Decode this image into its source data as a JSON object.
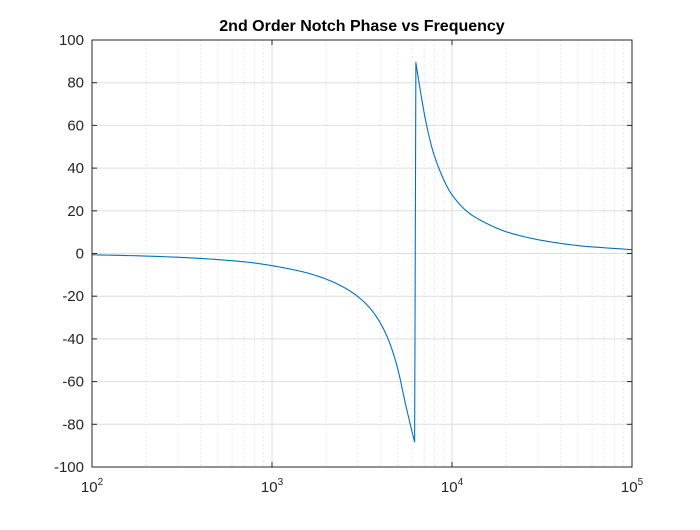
{
  "chart_data": {
    "type": "line",
    "title": "2nd Order Notch Phase vs Frequency",
    "xlabel": "",
    "ylabel": "",
    "x_scale": "log",
    "xlim": [
      100,
      100000
    ],
    "ylim": [
      -100,
      100
    ],
    "grid": true,
    "minor_grid_x": true,
    "line_color": "#0072BD",
    "x_ticks": [
      {
        "value": 100,
        "base": "10",
        "exp": "2"
      },
      {
        "value": 1000,
        "base": "10",
        "exp": "3"
      },
      {
        "value": 10000,
        "base": "10",
        "exp": "4"
      },
      {
        "value": 100000,
        "base": "10",
        "exp": "5"
      }
    ],
    "y_ticks": [
      {
        "value": 100,
        "label": "100"
      },
      {
        "value": 80,
        "label": "80"
      },
      {
        "value": 60,
        "label": "60"
      },
      {
        "value": 40,
        "label": "40"
      },
      {
        "value": 20,
        "label": "20"
      },
      {
        "value": 0,
        "label": "0"
      },
      {
        "value": -20,
        "label": "-20"
      },
      {
        "value": -40,
        "label": "-40"
      },
      {
        "value": -60,
        "label": "-60"
      },
      {
        "value": -80,
        "label": "-80"
      },
      {
        "value": -100,
        "label": "-100"
      }
    ],
    "series": [
      {
        "values": [
          [
            100,
            -0.6
          ],
          [
            200,
            -1.2
          ],
          [
            400,
            -2.3
          ],
          [
            700,
            -3.9
          ],
          [
            1000,
            -5.7
          ],
          [
            1500,
            -8.7
          ],
          [
            2000,
            -12.0
          ],
          [
            2500,
            -15.8
          ],
          [
            3000,
            -20.2
          ],
          [
            3500,
            -25.6
          ],
          [
            4000,
            -32.6
          ],
          [
            4500,
            -41.8
          ],
          [
            5000,
            -54.2
          ],
          [
            5500,
            -70.0
          ],
          [
            6000,
            -83.5
          ],
          [
            6200,
            -88.2
          ],
          [
            6300,
            89.5
          ],
          [
            6500,
            82.0
          ],
          [
            7000,
            66.0
          ],
          [
            7500,
            54.0
          ],
          [
            8000,
            45.5
          ],
          [
            9000,
            34.5
          ],
          [
            10000,
            27.5
          ],
          [
            12000,
            20.0
          ],
          [
            15000,
            14.8
          ],
          [
            20000,
            10.2
          ],
          [
            30000,
            6.5
          ],
          [
            50000,
            3.7
          ],
          [
            70000,
            2.7
          ],
          [
            100000,
            1.8
          ]
        ]
      }
    ]
  }
}
